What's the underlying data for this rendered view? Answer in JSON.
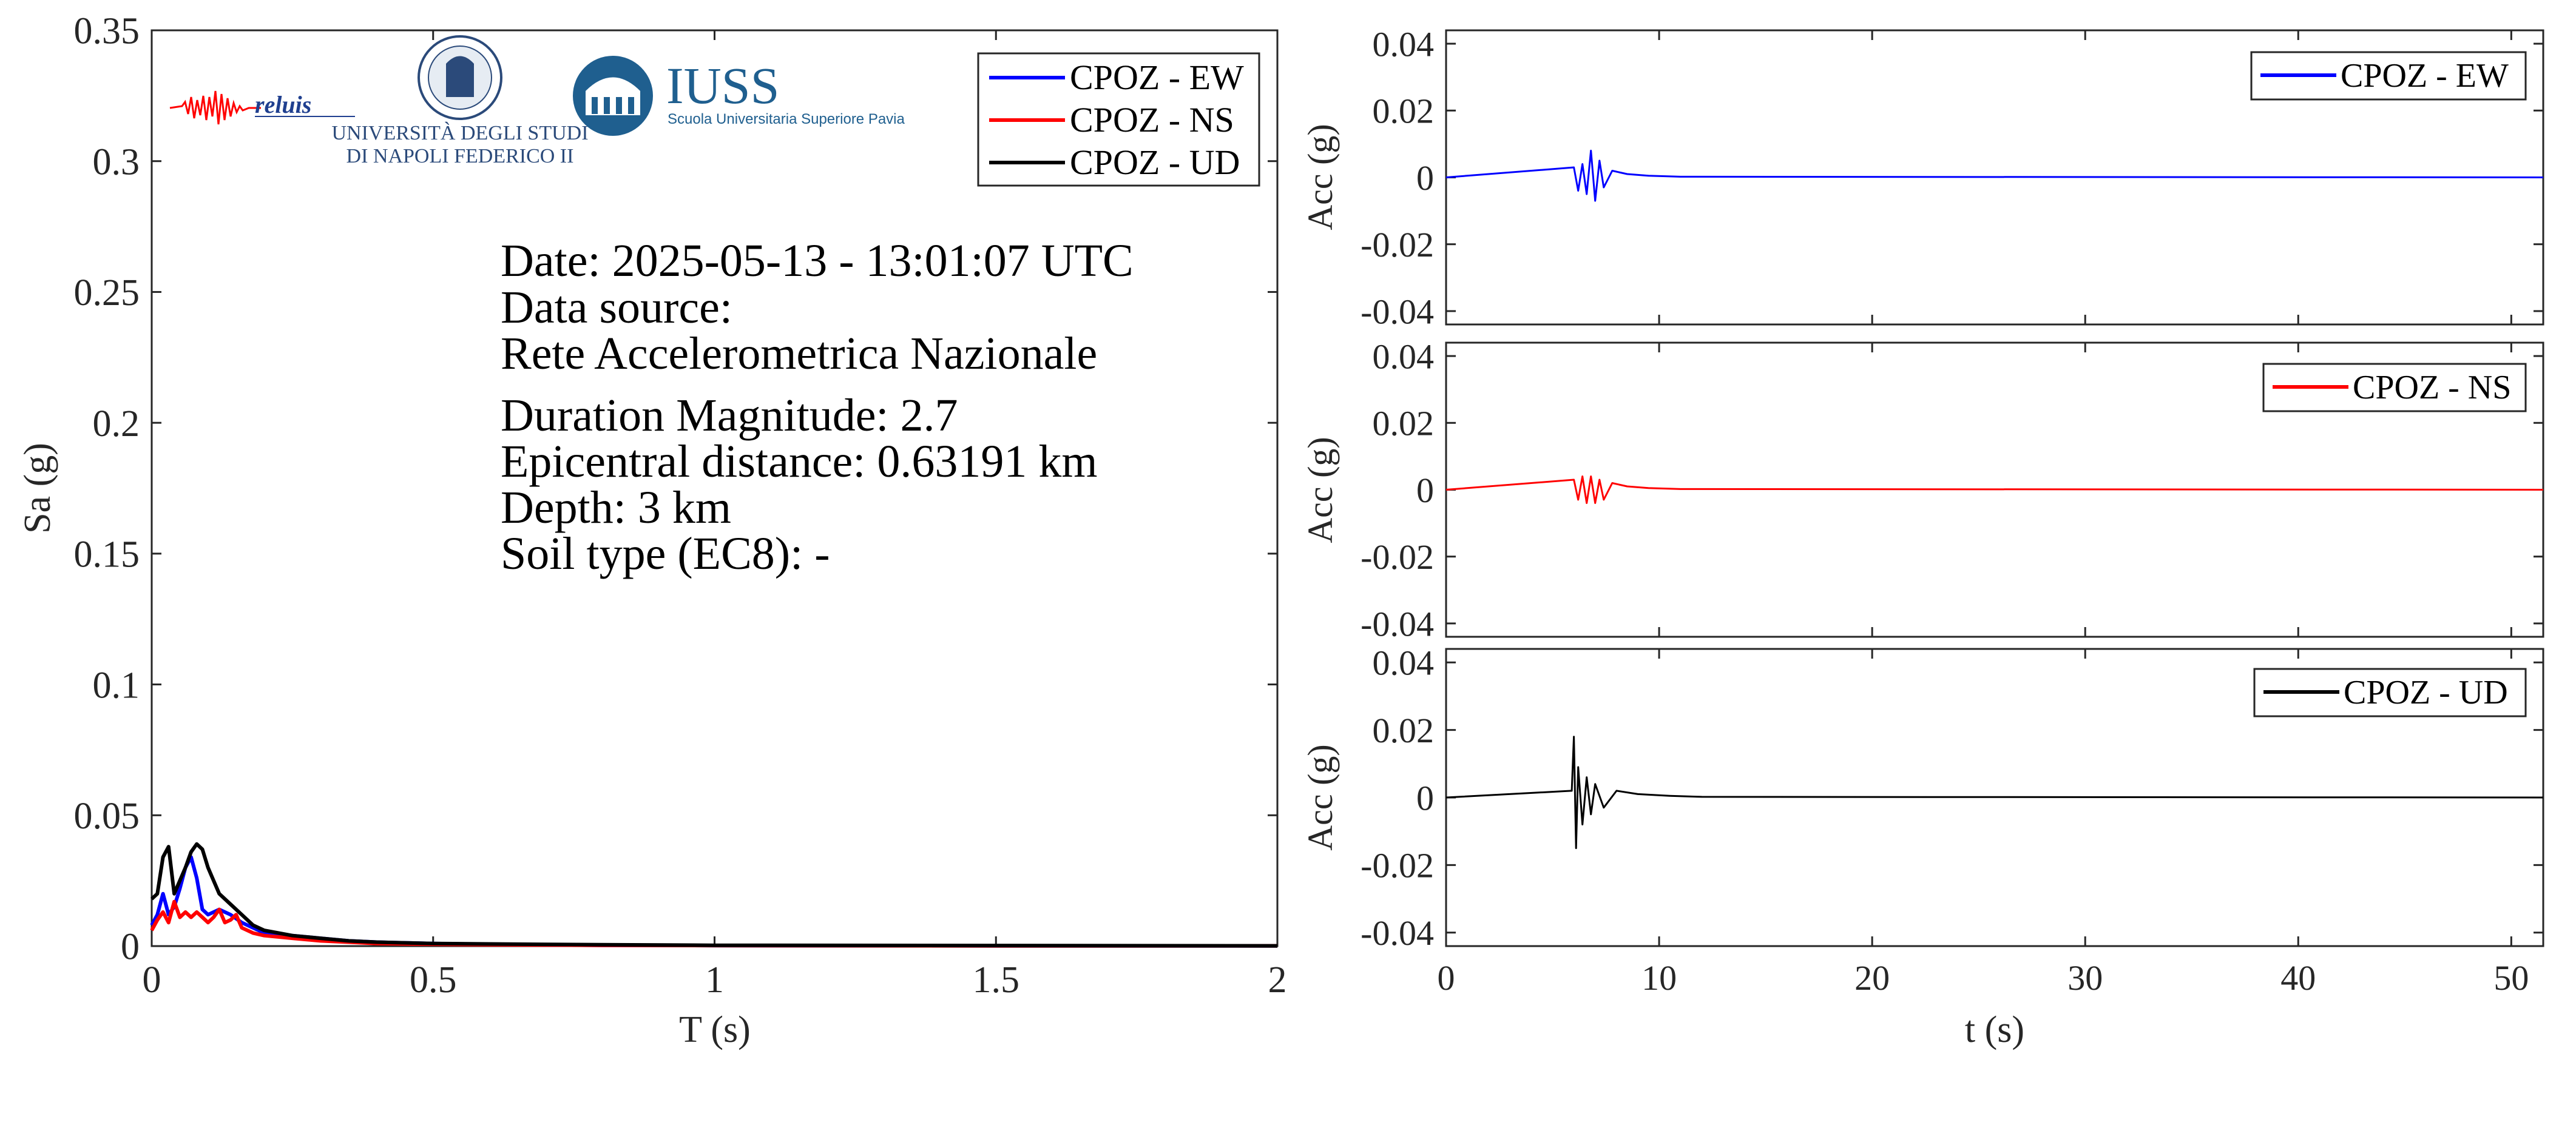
{
  "colors": {
    "ew": "#0000ff",
    "ns": "#ff0000",
    "ud": "#000000",
    "axis": "#262626",
    "iuss": "#1f5f8f"
  },
  "logos": {
    "reluis": "reluis",
    "unina_line1": "UNIVERSITÀ DEGLI STUDI",
    "unina_line2": "DI NAPOLI FEDERICO II",
    "iuss_name": "IUSS",
    "iuss_sub": "Scuola Universitaria Superiore Pavia"
  },
  "info": {
    "date": "Date: 2025-05-13 - 13:01:07 UTC",
    "source_label": "Data source:",
    "source_name": "Rete Accelerometrica Nazionale",
    "magnitude": "Duration Magnitude: 2.7",
    "distance": "Epicentral distance: 0.63191 km",
    "depth": "Depth: 3 km",
    "soil": "Soil type (EC8): -"
  },
  "chart_data": [
    {
      "type": "line",
      "xlabel": "T (s)",
      "ylabel": "Sa (g)",
      "xlim": [
        0,
        2
      ],
      "ylim": [
        0,
        0.35
      ],
      "xticks": [
        "0",
        "0.5",
        "1",
        "1.5",
        "2"
      ],
      "yticks": [
        "0",
        "0.05",
        "0.1",
        "0.15",
        "0.2",
        "0.25",
        "0.3",
        "0.35"
      ],
      "grid": false,
      "legend_position": "top-right",
      "series": [
        {
          "name": "CPOZ - EW",
          "color": "#0000ff",
          "x": [
            0,
            0.01,
            0.02,
            0.03,
            0.04,
            0.05,
            0.06,
            0.07,
            0.08,
            0.09,
            0.1,
            0.12,
            0.14,
            0.16,
            0.18,
            0.2,
            0.25,
            0.3,
            0.35,
            0.4,
            0.5,
            0.6,
            0.8,
            1.0,
            1.5,
            2.0
          ],
          "y": [
            0.008,
            0.012,
            0.02,
            0.012,
            0.015,
            0.022,
            0.03,
            0.034,
            0.026,
            0.014,
            0.012,
            0.014,
            0.012,
            0.009,
            0.007,
            0.005,
            0.004,
            0.003,
            0.002,
            0.0015,
            0.001,
            0.0006,
            0.0003,
            0.0002,
            0.0001,
            0.0001
          ]
        },
        {
          "name": "CPOZ - NS",
          "color": "#ff0000",
          "x": [
            0,
            0.01,
            0.02,
            0.03,
            0.04,
            0.05,
            0.06,
            0.07,
            0.08,
            0.09,
            0.1,
            0.11,
            0.12,
            0.13,
            0.14,
            0.15,
            0.16,
            0.18,
            0.2,
            0.25,
            0.3,
            0.35,
            0.4,
            0.5,
            0.6,
            0.8,
            1.0,
            1.5,
            2.0
          ],
          "y": [
            0.006,
            0.01,
            0.013,
            0.009,
            0.017,
            0.011,
            0.013,
            0.011,
            0.013,
            0.011,
            0.009,
            0.011,
            0.014,
            0.009,
            0.01,
            0.012,
            0.007,
            0.005,
            0.004,
            0.003,
            0.002,
            0.0015,
            0.001,
            0.0007,
            0.0005,
            0.0003,
            0.0002,
            0.0001,
            0.0001
          ]
        },
        {
          "name": "CPOZ - UD",
          "color": "#000000",
          "x": [
            0,
            0.01,
            0.02,
            0.03,
            0.04,
            0.05,
            0.06,
            0.07,
            0.08,
            0.09,
            0.1,
            0.11,
            0.12,
            0.14,
            0.16,
            0.18,
            0.2,
            0.25,
            0.3,
            0.35,
            0.4,
            0.5,
            0.6,
            0.8,
            1.0,
            1.5,
            2.0
          ],
          "y": [
            0.018,
            0.02,
            0.034,
            0.038,
            0.02,
            0.025,
            0.03,
            0.036,
            0.039,
            0.037,
            0.03,
            0.025,
            0.02,
            0.016,
            0.012,
            0.008,
            0.006,
            0.004,
            0.003,
            0.002,
            0.0015,
            0.001,
            0.0008,
            0.0005,
            0.0003,
            0.0002,
            0.0001
          ]
        }
      ]
    },
    {
      "type": "line",
      "xlabel": "",
      "ylabel": "Acc (g)",
      "xlim": [
        0,
        51.5
      ],
      "ylim": [
        -0.044,
        0.044
      ],
      "xticks": [],
      "yticks": [
        "-0.04",
        "-0.02",
        "0",
        "0.02",
        "0.04"
      ],
      "legend_position": "top-right",
      "series": [
        {
          "name": "CPOZ - EW",
          "color": "#0000ff",
          "x": [
            0,
            6.0,
            6.2,
            6.4,
            6.6,
            6.8,
            7.0,
            7.2,
            7.4,
            7.8,
            8.5,
            9.5,
            11,
            51.5
          ],
          "y": [
            0,
            0.003,
            -0.004,
            0.004,
            -0.005,
            0.008,
            -0.007,
            0.005,
            -0.003,
            0.002,
            0.001,
            0.0005,
            0.0002,
            0
          ]
        }
      ]
    },
    {
      "type": "line",
      "xlabel": "",
      "ylabel": "Acc (g)",
      "xlim": [
        0,
        51.5
      ],
      "ylim": [
        -0.044,
        0.044
      ],
      "xticks": [],
      "yticks": [
        "-0.04",
        "-0.02",
        "0",
        "0.02",
        "0.04"
      ],
      "legend_position": "top-right",
      "series": [
        {
          "name": "CPOZ - NS",
          "color": "#ff0000",
          "x": [
            0,
            6.0,
            6.2,
            6.4,
            6.6,
            6.8,
            7.0,
            7.2,
            7.4,
            7.8,
            8.5,
            9.5,
            11,
            51.5
          ],
          "y": [
            0,
            0.003,
            -0.003,
            0.004,
            -0.004,
            0.004,
            -0.004,
            0.003,
            -0.003,
            0.002,
            0.001,
            0.0005,
            0.0002,
            0
          ]
        }
      ]
    },
    {
      "type": "line",
      "xlabel": "t (s)",
      "ylabel": "Acc (g)",
      "xlim": [
        0,
        51.5
      ],
      "ylim": [
        -0.044,
        0.044
      ],
      "xticks": [
        "0",
        "10",
        "20",
        "30",
        "40",
        "50"
      ],
      "yticks": [
        "-0.04",
        "-0.02",
        "0",
        "0.02",
        "0.04"
      ],
      "legend_position": "top-right",
      "series": [
        {
          "name": "CPOZ - UD",
          "color": "#000000",
          "x": [
            0,
            5.9,
            6.0,
            6.1,
            6.2,
            6.4,
            6.6,
            6.8,
            7.0,
            7.4,
            8.0,
            9.0,
            10.5,
            12,
            51.5
          ],
          "y": [
            0,
            0.002,
            0.018,
            -0.015,
            0.009,
            -0.008,
            0.006,
            -0.005,
            0.004,
            -0.003,
            0.002,
            0.001,
            0.0005,
            0.0002,
            0
          ]
        }
      ]
    }
  ]
}
